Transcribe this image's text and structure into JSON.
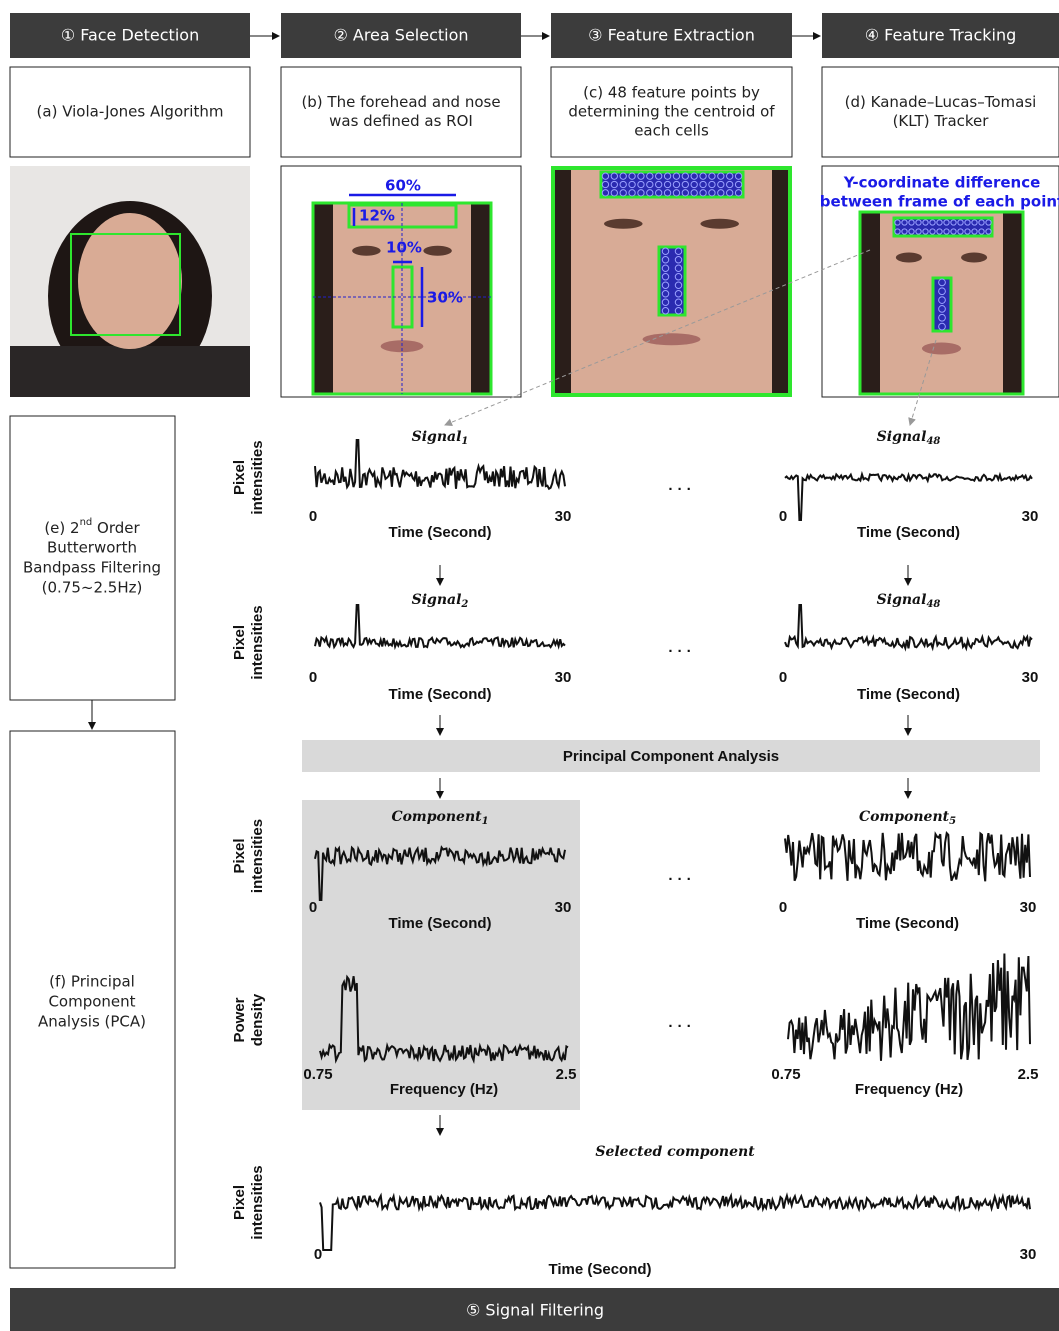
{
  "steps": [
    "① Face Detection",
    "② Area Selection",
    "③ Feature Extraction",
    "④ Feature Tracking",
    "⑤ Signal Filtering"
  ],
  "descriptions": [
    [
      "(a) Viola-Jones Algorithm"
    ],
    [
      "(b) The forehead and nose",
      "was defined as ROI"
    ],
    [
      "(c) 48 feature points by",
      "determining the centroid of",
      "each cells"
    ],
    [
      "(d) Kanade–Lucas–Tomasi",
      "(KLT) Tracker"
    ]
  ],
  "roi_labels": [
    "60%",
    "12%",
    "10%",
    "30%"
  ],
  "tracking_note": [
    "Y-coordinate difference",
    "between frame of each point"
  ],
  "left_boxes": {
    "e": {
      "prefix": "(e) 2",
      "sup": "nd",
      "lines": [
        " Order",
        "Butterworth",
        "Bandpass Filtering",
        "(0.75~2.5Hz)"
      ]
    },
    "f": {
      "lines": [
        "(f) Principal",
        "Component",
        "Analysis (PCA)"
      ]
    }
  },
  "pca_label": "Principal Component Analysis",
  "ellipsis": "· · ·",
  "plots": [
    {
      "title": "Signal",
      "sub": "1",
      "ylabel": [
        "Pixel",
        "intensities"
      ],
      "xlabel": "Time (Second)",
      "xstart": "0",
      "xend": "30"
    },
    {
      "title": "Signal",
      "sub": "48",
      "ylabel": [
        "Pixel",
        "intensities"
      ],
      "xlabel": "Time (Second)",
      "xstart": "0",
      "xend": "30"
    },
    {
      "title": "Signal",
      "sub": "2",
      "ylabel": [
        "Pixel",
        "intensities"
      ],
      "xlabel": "Time (Second)",
      "xstart": "0",
      "xend": "30"
    },
    {
      "title": "Signal",
      "sub": "48",
      "ylabel": [
        "Pixel",
        "intensities"
      ],
      "xlabel": "Time (Second)",
      "xstart": "0",
      "xend": "30"
    },
    {
      "title": "Component",
      "sub": "1",
      "ylabel": [
        "Pixel",
        "intensities"
      ],
      "xlabel": "Time (Second)",
      "xstart": "0",
      "xend": "30"
    },
    {
      "title": "Component",
      "sub": "5",
      "ylabel": [
        "Pixel",
        "intensities"
      ],
      "xlabel": "Time (Second)",
      "xstart": "0",
      "xend": "30"
    },
    {
      "ylabel": [
        "Power",
        "density"
      ],
      "xlabel": "Frequency (Hz)",
      "xstart": "0.75",
      "xend": "2.5"
    },
    {
      "ylabel": [
        "Power",
        "density"
      ],
      "xlabel": "Frequency (Hz)",
      "xstart": "0.75",
      "xend": "2.5"
    },
    {
      "title": "Selected component",
      "ylabel": [
        "Pixel",
        "intensities"
      ],
      "xlabel": "Time (Second)",
      "xstart": "0",
      "xend": "30"
    }
  ]
}
